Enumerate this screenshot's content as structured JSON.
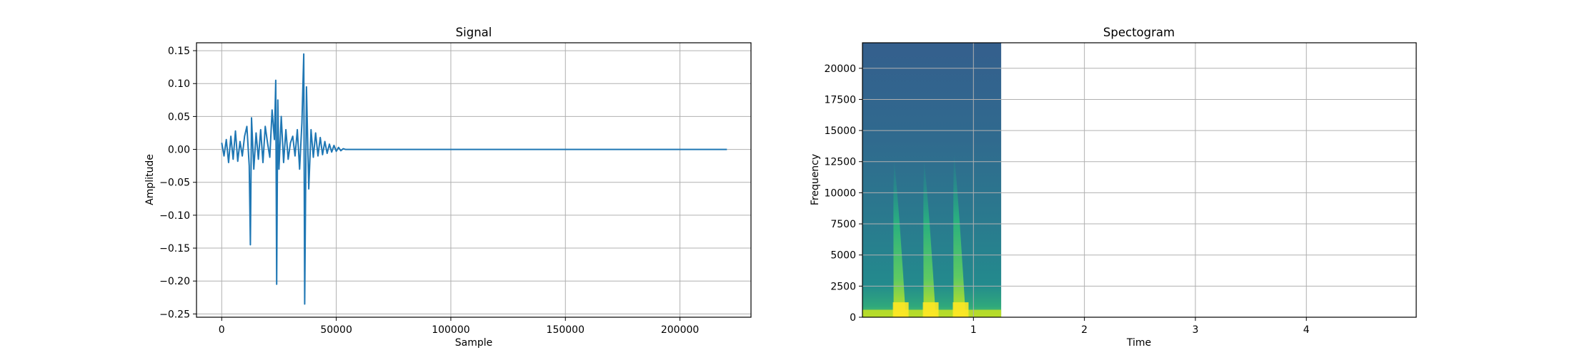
{
  "chart_data": [
    {
      "type": "line",
      "title": "Signal",
      "xlabel": "Sample",
      "ylabel": "Amplitude",
      "xlim": [
        -11000,
        231000
      ],
      "ylim": [
        -0.255,
        0.162
      ],
      "x_ticks": [
        0,
        50000,
        100000,
        150000,
        200000
      ],
      "y_ticks": [
        0.15,
        0.1,
        0.05,
        0.0,
        -0.05,
        -0.1,
        -0.15,
        -0.2,
        -0.25
      ],
      "grid": true,
      "line_color": "#1f77b4",
      "series": [
        {
          "x": [
            0,
            1000,
            2000,
            3000,
            4000,
            5000,
            6000,
            7000,
            8000,
            9000,
            10000,
            11000,
            12000,
            12500,
            13000,
            14000,
            15000,
            16000,
            17000,
            18000,
            19000,
            20000,
            21000,
            22000,
            23000,
            23600,
            24000,
            24500,
            25000,
            26000,
            27000,
            28000,
            29000,
            30000,
            31000,
            32000,
            33000,
            34000,
            35000,
            35800,
            36200,
            37000,
            38000,
            39000,
            40000,
            41000,
            42000,
            43000,
            44000,
            45000,
            46000,
            47000,
            48000,
            49000,
            50000,
            51000,
            52000,
            53000,
            54000,
            55000,
            60000,
            100000,
            150000,
            200000,
            220500
          ],
          "y": [
            0.01,
            -0.01,
            0.015,
            -0.02,
            0.02,
            -0.015,
            0.028,
            -0.018,
            0.012,
            -0.01,
            0.02,
            0.035,
            -0.025,
            -0.145,
            0.048,
            -0.03,
            0.025,
            -0.015,
            0.03,
            -0.02,
            0.035,
            0.01,
            -0.012,
            0.06,
            0.015,
            0.105,
            -0.205,
            0.075,
            -0.03,
            0.05,
            -0.02,
            0.03,
            -0.015,
            0.01,
            0.02,
            -0.01,
            0.03,
            -0.03,
            0.04,
            0.145,
            -0.235,
            0.095,
            -0.06,
            0.03,
            -0.012,
            0.025,
            -0.01,
            0.018,
            -0.008,
            0.012,
            -0.006,
            0.008,
            -0.004,
            0.006,
            -0.003,
            0.003,
            -0.002,
            0.001,
            0.0,
            0.0,
            0.0,
            0.0,
            0.0,
            0.0,
            0.0
          ]
        }
      ]
    },
    {
      "type": "heatmap",
      "title": "Spectogram",
      "xlabel": "Time",
      "ylabel": "Frequency",
      "xlim": [
        0,
        4.99
      ],
      "ylim": [
        0,
        22050
      ],
      "x_ticks": [
        1,
        2,
        3,
        4
      ],
      "y_ticks": [
        0,
        2500,
        5000,
        7500,
        10000,
        12500,
        15000,
        17500,
        20000
      ],
      "grid": true,
      "data_time_range": [
        0,
        1.25
      ],
      "onsets": [
        0.3,
        0.57,
        0.84
      ],
      "onset_peak_frequency": [
        12500,
        12500,
        13000
      ],
      "colormap": [
        "#3b528b",
        "#21908d",
        "#5dc963",
        "#fde725"
      ]
    }
  ]
}
